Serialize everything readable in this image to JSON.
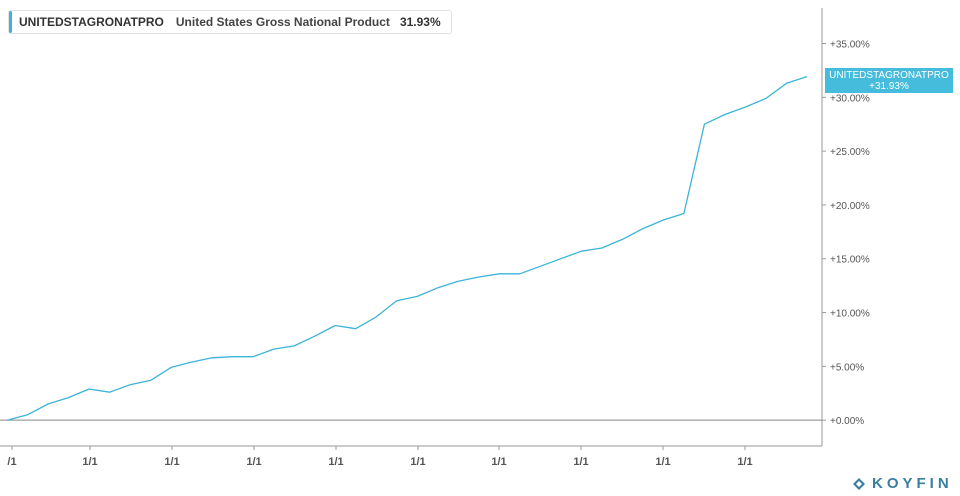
{
  "legend": {
    "ticker": "UNITEDSTAGRONATPRO",
    "name": "United States Gross National Product",
    "value": "31.93%"
  },
  "price_tag": {
    "ticker": "UNITEDSTAGRONATPRO",
    "value": "+31.93%"
  },
  "brand": {
    "logo_text": "KOYFIN"
  },
  "colors": {
    "line": "#3bb4d9",
    "tag": "#45bcdc",
    "axis": "#9a9a9a",
    "zero_line": "#888888",
    "logo": "#3a7fa0"
  },
  "chart_data": {
    "type": "line",
    "title": "",
    "xlabel": "",
    "ylabel": "",
    "x_tick_labels": [
      "/1",
      "1/1",
      "1/1",
      "1/1",
      "1/1",
      "1/1",
      "1/1",
      "1/1",
      "1/1",
      "1/1"
    ],
    "y_ticks": [
      "+0.00%",
      "+5.00%",
      "+10.00%",
      "+15.00%",
      "+20.00%",
      "+25.00%",
      "+30.00%",
      "+35.00%"
    ],
    "y_tick_values": [
      0,
      5,
      10,
      15,
      20,
      25,
      30,
      35
    ],
    "ylim": [
      -2.4,
      38.3
    ],
    "grid": false,
    "legend_position": "top-left",
    "series": [
      {
        "name": "United States Gross National Product",
        "values": [
          0.0,
          0.5,
          1.5,
          2.1,
          2.9,
          2.6,
          3.3,
          3.7,
          4.9,
          5.4,
          5.8,
          5.9,
          5.9,
          6.6,
          6.9,
          7.8,
          8.8,
          8.5,
          9.6,
          11.1,
          11.5,
          12.3,
          12.9,
          13.3,
          13.6,
          13.6,
          14.3,
          15.0,
          15.7,
          16.0,
          16.8,
          17.8,
          18.6,
          19.2,
          27.5,
          28.4,
          29.1,
          29.9,
          31.3,
          31.93
        ]
      }
    ]
  }
}
